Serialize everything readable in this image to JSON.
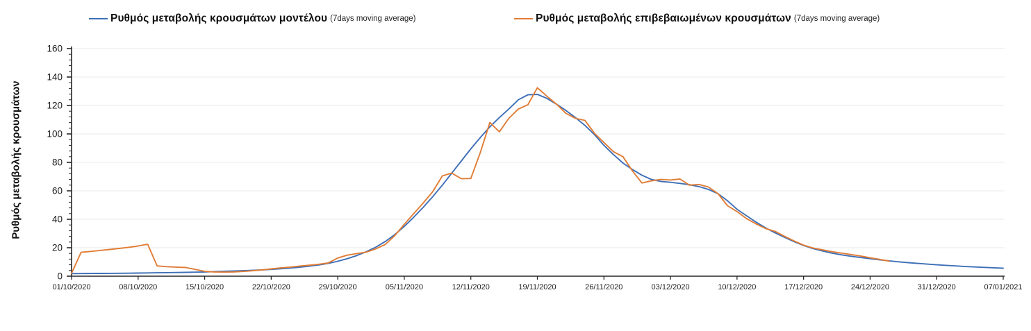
{
  "legend": {
    "items": [
      {
        "label": "Ρυθμός μεταβολής κρουσμάτων μοντέλου",
        "suffix": "(7days moving average)"
      },
      {
        "label": "Ρυθμός μεταβολής επιβεβαιωμένων κρουσμάτων",
        "suffix": "(7days moving average)"
      }
    ]
  },
  "colors": {
    "axis": "#262626",
    "grid": "#e9e9e9",
    "tick_text": "#1a1a1a",
    "model_blue": "#3d6fb6",
    "confirmed_orange": "#e07c35"
  },
  "chart_data": {
    "type": "line",
    "title": "",
    "xlabel": "",
    "ylabel": "Ρυθμός μεταβολής κρουσμάτων",
    "ylim": [
      0,
      160
    ],
    "y_major_step": 20,
    "y_minor_step": 4,
    "grid": "horizontal-major",
    "legend_position": "top",
    "x_unit": "day",
    "days_total": 98,
    "x_tick_days": [
      0,
      7,
      14,
      21,
      28,
      35,
      42,
      49,
      56,
      63,
      70,
      77,
      84,
      91,
      98
    ],
    "x_tick_labels": [
      "01/10/2020",
      "08/10/2020",
      "15/10/2020",
      "22/10/2020",
      "29/10/2020",
      "05/11/2020",
      "12/11/2020",
      "19/11/2020",
      "26/11/2020",
      "03/12/2020",
      "10/12/2020",
      "17/12/2020",
      "24/12/2020",
      "31/12/2020",
      "07/01/2021"
    ],
    "series": [
      {
        "name": "Ρυθμός μεταβολής κρουσμάτων μοντέλου (7days moving average)",
        "color": "#3d6fb6",
        "start_day": 0,
        "values": [
          1.8,
          1.85,
          1.9,
          1.95,
          2.0,
          2.05,
          2.1,
          2.2,
          2.3,
          2.4,
          2.5,
          2.6,
          2.7,
          2.85,
          3.0,
          3.2,
          3.4,
          3.6,
          3.85,
          4.1,
          4.4,
          4.8,
          5.2,
          5.7,
          6.3,
          7.0,
          7.9,
          9.0,
          10.5,
          12.3,
          14.5,
          17.2,
          20.4,
          24.4,
          29.2,
          35.0,
          41.5,
          48.5,
          56.0,
          64.0,
          72.5,
          81.0,
          89.5,
          97.5,
          105.0,
          111.5,
          117.5,
          124.0,
          127.5,
          127.8,
          125.0,
          121.0,
          116.5,
          111.5,
          106.0,
          99.5,
          92.0,
          85.5,
          79.5,
          75.0,
          71.0,
          68.0,
          66.6,
          66.0,
          65.2,
          64.3,
          63.0,
          61.0,
          58.0,
          53.0,
          47.0,
          42.5,
          38.0,
          34.0,
          30.5,
          27.3,
          24.3,
          21.6,
          19.4,
          17.7,
          16.2,
          15.0,
          14.0,
          13.1,
          12.3,
          11.5,
          10.8,
          10.1,
          9.5,
          9.0,
          8.5,
          8.0,
          7.6,
          7.2,
          6.8,
          6.5,
          6.2,
          5.9,
          5.6
        ]
      },
      {
        "name": "Ρυθμός μεταβολής επιβεβαιωμένων κρουσμάτων (7days moving average)",
        "color": "#e07c35",
        "start_day": 0,
        "values": [
          2.0,
          16.8,
          17.4,
          18.1,
          18.8,
          19.5,
          20.3,
          21.2,
          22.5,
          7.2,
          6.7,
          6.4,
          6.1,
          4.8,
          3.4,
          3.0,
          2.9,
          3.0,
          3.3,
          3.8,
          4.4,
          5.1,
          5.8,
          6.4,
          7.1,
          7.7,
          8.4,
          9.3,
          12.8,
          14.8,
          15.9,
          16.9,
          19.2,
          22.3,
          28.5,
          36.5,
          44.0,
          51.5,
          59.5,
          70.5,
          72.5,
          68.5,
          68.7,
          87.0,
          108.0,
          101.5,
          111.0,
          117.5,
          120.5,
          132.5,
          126.5,
          121.0,
          114.5,
          111.0,
          109.5,
          100.5,
          94.0,
          87.5,
          84.0,
          74.0,
          65.5,
          67.0,
          68.0,
          67.6,
          68.3,
          64.0,
          64.5,
          62.7,
          58.0,
          49.5,
          45.4,
          40.5,
          36.8,
          33.5,
          31.5,
          28.0,
          24.8,
          21.8,
          19.8,
          18.5,
          17.2,
          16.2,
          15.2,
          14.2,
          13.0,
          11.8,
          10.6
        ]
      }
    ]
  }
}
